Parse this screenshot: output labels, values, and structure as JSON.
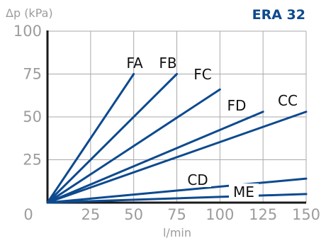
{
  "model": "ERA 32",
  "colors": {
    "line": "#0d4a8f",
    "grid": "#a9a9a9",
    "axis_text": "#9c9c9c",
    "title": "#0d4a8f"
  },
  "chart_data": {
    "type": "line",
    "title": "ERA 32",
    "ylabel": "Δp (kPa)",
    "xlabel": "l/min",
    "xlim": [
      0,
      150
    ],
    "ylim": [
      0,
      100
    ],
    "x_ticks": [
      "0",
      "25",
      "50",
      "75",
      "100",
      "125",
      "150"
    ],
    "y_ticks": [
      "25",
      "50",
      "75",
      "100"
    ],
    "grid": true,
    "series": [
      {
        "name": "FA",
        "x": [
          0,
          50
        ],
        "y": [
          0,
          75
        ]
      },
      {
        "name": "FB",
        "x": [
          0,
          75
        ],
        "y": [
          0,
          75
        ]
      },
      {
        "name": "FC",
        "x": [
          0,
          100
        ],
        "y": [
          0,
          66
        ]
      },
      {
        "name": "FD",
        "x": [
          0,
          125
        ],
        "y": [
          0,
          53
        ]
      },
      {
        "name": "CC",
        "x": [
          0,
          150
        ],
        "y": [
          0,
          53
        ]
      },
      {
        "name": "CD",
        "x": [
          0,
          150
        ],
        "y": [
          0,
          14
        ]
      },
      {
        "name": "ME",
        "x": [
          0,
          150
        ],
        "y": [
          0,
          5
        ]
      }
    ]
  }
}
